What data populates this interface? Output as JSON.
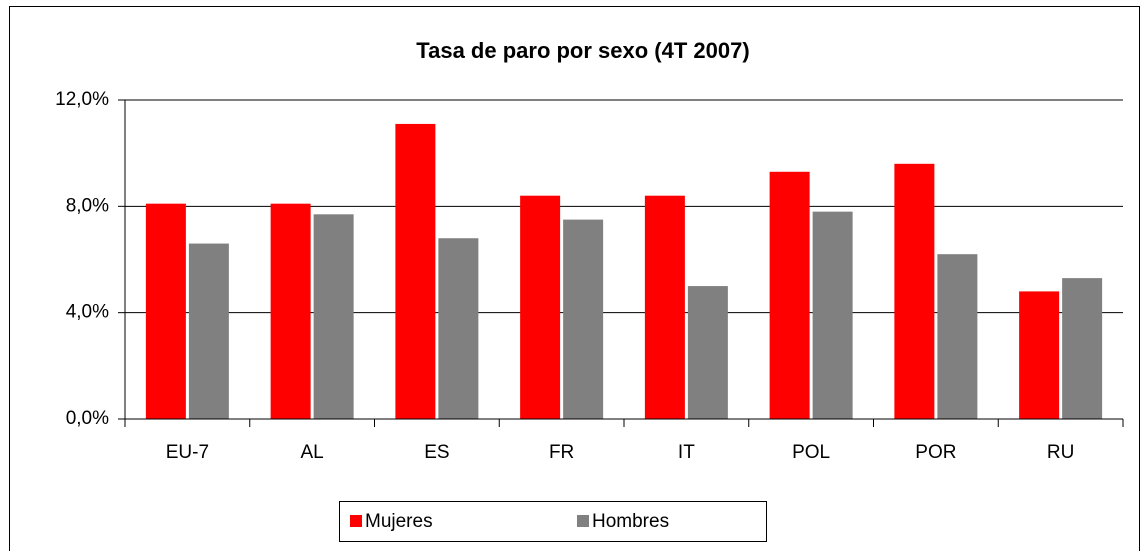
{
  "chart_data": {
    "type": "bar",
    "title": "Tasa de paro por sexo (4T 2007)",
    "categories": [
      "EU-7",
      "AL",
      "ES",
      "FR",
      "IT",
      "POL",
      "POR",
      "RU"
    ],
    "series": [
      {
        "name": "Mujeres",
        "color": "#ff0000",
        "values": [
          8.1,
          8.1,
          11.1,
          8.4,
          8.4,
          9.3,
          9.6,
          4.8
        ]
      },
      {
        "name": "Hombres",
        "color": "#808080",
        "values": [
          6.6,
          7.7,
          6.8,
          7.5,
          5.0,
          7.8,
          6.2,
          5.3
        ]
      }
    ],
    "ylim": [
      0,
      12
    ],
    "yticks": [
      {
        "value": 0,
        "label": "0,0%"
      },
      {
        "value": 4,
        "label": "4,0%"
      },
      {
        "value": 8,
        "label": "8,0%"
      },
      {
        "value": 12,
        "label": "12,0%"
      }
    ],
    "grid": true,
    "legend": "bottom"
  }
}
